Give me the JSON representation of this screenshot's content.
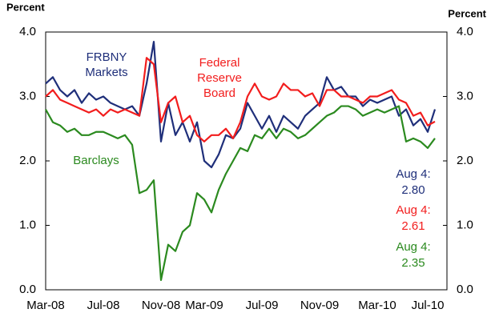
{
  "chart_data": {
    "type": "line",
    "y_label": "Percent",
    "y2_label": "Percent",
    "annotation": "Aug 4:",
    "categories": [
      "Mar-08",
      null,
      null,
      null,
      null,
      null,
      null,
      null,
      "Jul-08",
      null,
      null,
      null,
      null,
      null,
      null,
      null,
      "Nov-08",
      null,
      null,
      null,
      null,
      null,
      "Mar-09",
      null,
      null,
      null,
      null,
      null,
      null,
      null,
      "Jul-09",
      null,
      null,
      null,
      null,
      null,
      null,
      null,
      "Nov-09",
      null,
      null,
      null,
      null,
      null,
      null,
      null,
      "Mar-10",
      null,
      null,
      null,
      null,
      null,
      null,
      "Jul-10",
      null
    ],
    "series": [
      {
        "name": "FRBNY Markets",
        "color": "#1f2f7a",
        "values": [
          3.2,
          3.3,
          3.1,
          3.0,
          3.1,
          2.9,
          3.05,
          2.95,
          3.0,
          2.9,
          2.85,
          2.8,
          2.85,
          2.7,
          3.2,
          3.85,
          2.3,
          2.9,
          2.4,
          2.6,
          2.3,
          2.6,
          2.0,
          1.9,
          2.1,
          2.4,
          2.35,
          2.5,
          2.9,
          2.7,
          2.5,
          2.7,
          2.45,
          2.7,
          2.6,
          2.5,
          2.7,
          2.8,
          2.9,
          3.3,
          3.1,
          3.15,
          3.0,
          3.0,
          2.85,
          2.95,
          2.9,
          2.95,
          3.0,
          2.7,
          2.8,
          2.55,
          2.65,
          2.45,
          2.8
        ],
        "value_labels": [
          null,
          null,
          null,
          null,
          null,
          null,
          null,
          null,
          null,
          null,
          null,
          null,
          null,
          null,
          null,
          null,
          null,
          null,
          null,
          null,
          null,
          null,
          null,
          null,
          null,
          null,
          null,
          null,
          null,
          null,
          null,
          null,
          null,
          null,
          null,
          null,
          null,
          null,
          null,
          null,
          null,
          null,
          null,
          null,
          null,
          null,
          null,
          null,
          null,
          null,
          null,
          null,
          null,
          null,
          "2.80"
        ]
      },
      {
        "name": "Federal Reserve Board",
        "color": "#f21d1d",
        "values": [
          3.0,
          3.1,
          2.95,
          2.9,
          2.85,
          2.8,
          2.75,
          2.8,
          2.7,
          2.8,
          2.75,
          2.8,
          2.75,
          2.7,
          3.6,
          3.5,
          2.6,
          2.9,
          3.0,
          2.6,
          2.7,
          2.4,
          2.3,
          2.4,
          2.4,
          2.5,
          2.35,
          2.6,
          3.0,
          3.2,
          3.0,
          2.95,
          3.0,
          3.2,
          3.1,
          3.1,
          3.0,
          3.05,
          2.85,
          3.1,
          3.1,
          3.0,
          3.0,
          2.95,
          2.9,
          3.0,
          3.0,
          3.05,
          3.1,
          2.95,
          2.9,
          2.7,
          2.75,
          2.55,
          2.61
        ],
        "value_labels": [
          null,
          null,
          null,
          null,
          null,
          null,
          null,
          null,
          null,
          null,
          null,
          null,
          null,
          null,
          null,
          null,
          null,
          null,
          null,
          null,
          null,
          null,
          null,
          null,
          null,
          null,
          null,
          null,
          null,
          null,
          null,
          null,
          null,
          null,
          null,
          null,
          null,
          null,
          null,
          null,
          null,
          null,
          null,
          null,
          null,
          null,
          null,
          null,
          null,
          null,
          null,
          null,
          null,
          null,
          "2.61"
        ]
      },
      {
        "name": "Barclays",
        "color": "#2b8a1f",
        "values": [
          2.8,
          2.6,
          2.55,
          2.45,
          2.5,
          2.4,
          2.4,
          2.45,
          2.45,
          2.4,
          2.35,
          2.4,
          2.25,
          1.5,
          1.55,
          1.7,
          0.15,
          0.7,
          0.6,
          0.9,
          1.0,
          1.5,
          1.4,
          1.2,
          1.55,
          1.8,
          2.0,
          2.2,
          2.15,
          2.4,
          2.35,
          2.5,
          2.35,
          2.5,
          2.45,
          2.35,
          2.4,
          2.5,
          2.6,
          2.7,
          2.75,
          2.85,
          2.85,
          2.8,
          2.7,
          2.75,
          2.8,
          2.75,
          2.8,
          2.85,
          2.3,
          2.35,
          2.3,
          2.2,
          2.35
        ],
        "value_labels": [
          null,
          null,
          null,
          null,
          null,
          null,
          null,
          null,
          null,
          null,
          null,
          null,
          null,
          null,
          null,
          null,
          null,
          null,
          null,
          null,
          null,
          null,
          null,
          null,
          null,
          null,
          null,
          null,
          null,
          null,
          null,
          null,
          null,
          null,
          null,
          null,
          null,
          null,
          null,
          null,
          null,
          null,
          null,
          null,
          null,
          null,
          null,
          null,
          null,
          null,
          null,
          null,
          null,
          null,
          "2.35"
        ]
      }
    ],
    "ylim": [
      0,
      4
    ],
    "yticks": [
      {
        "value": 0,
        "label": "0.0"
      },
      {
        "value": 1,
        "label": "1.0"
      },
      {
        "value": 2,
        "label": "2.0"
      },
      {
        "value": 3,
        "label": "3.0"
      },
      {
        "value": 4,
        "label": "4.0"
      }
    ],
    "y2lim": [
      0,
      4
    ],
    "y2ticks": [
      {
        "value": 0,
        "label": "0.0"
      },
      {
        "value": 1,
        "label": "1.0"
      },
      {
        "value": 2,
        "label": "2.0"
      },
      {
        "value": 3,
        "label": "3.0"
      },
      {
        "value": 4,
        "label": "4.0"
      }
    ]
  }
}
